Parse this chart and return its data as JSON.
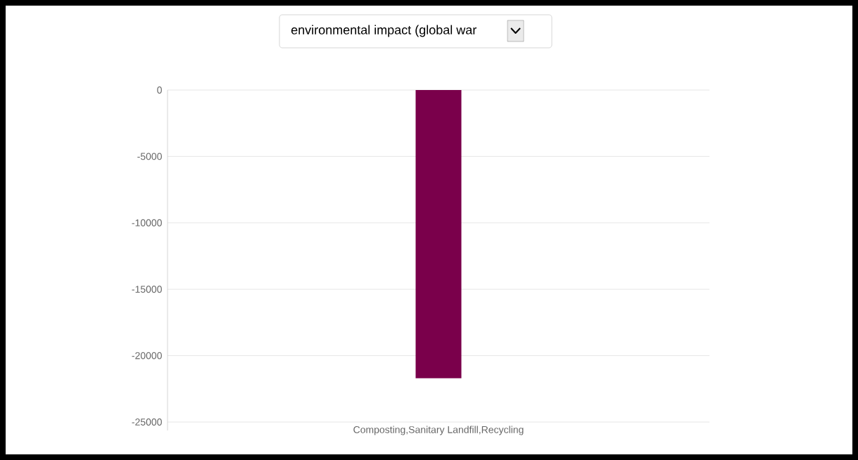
{
  "chart_data": {
    "type": "bar",
    "title": "environmental impact (global war",
    "categories": [
      "Composting,Sanitary Landfill,Recycling"
    ],
    "values": [
      -21700
    ],
    "color": "#7a004b",
    "ylim": [
      -25000,
      0
    ],
    "yticks": [
      -25000,
      -20000,
      -15000,
      -10000,
      -5000,
      0
    ],
    "grid": "y"
  }
}
